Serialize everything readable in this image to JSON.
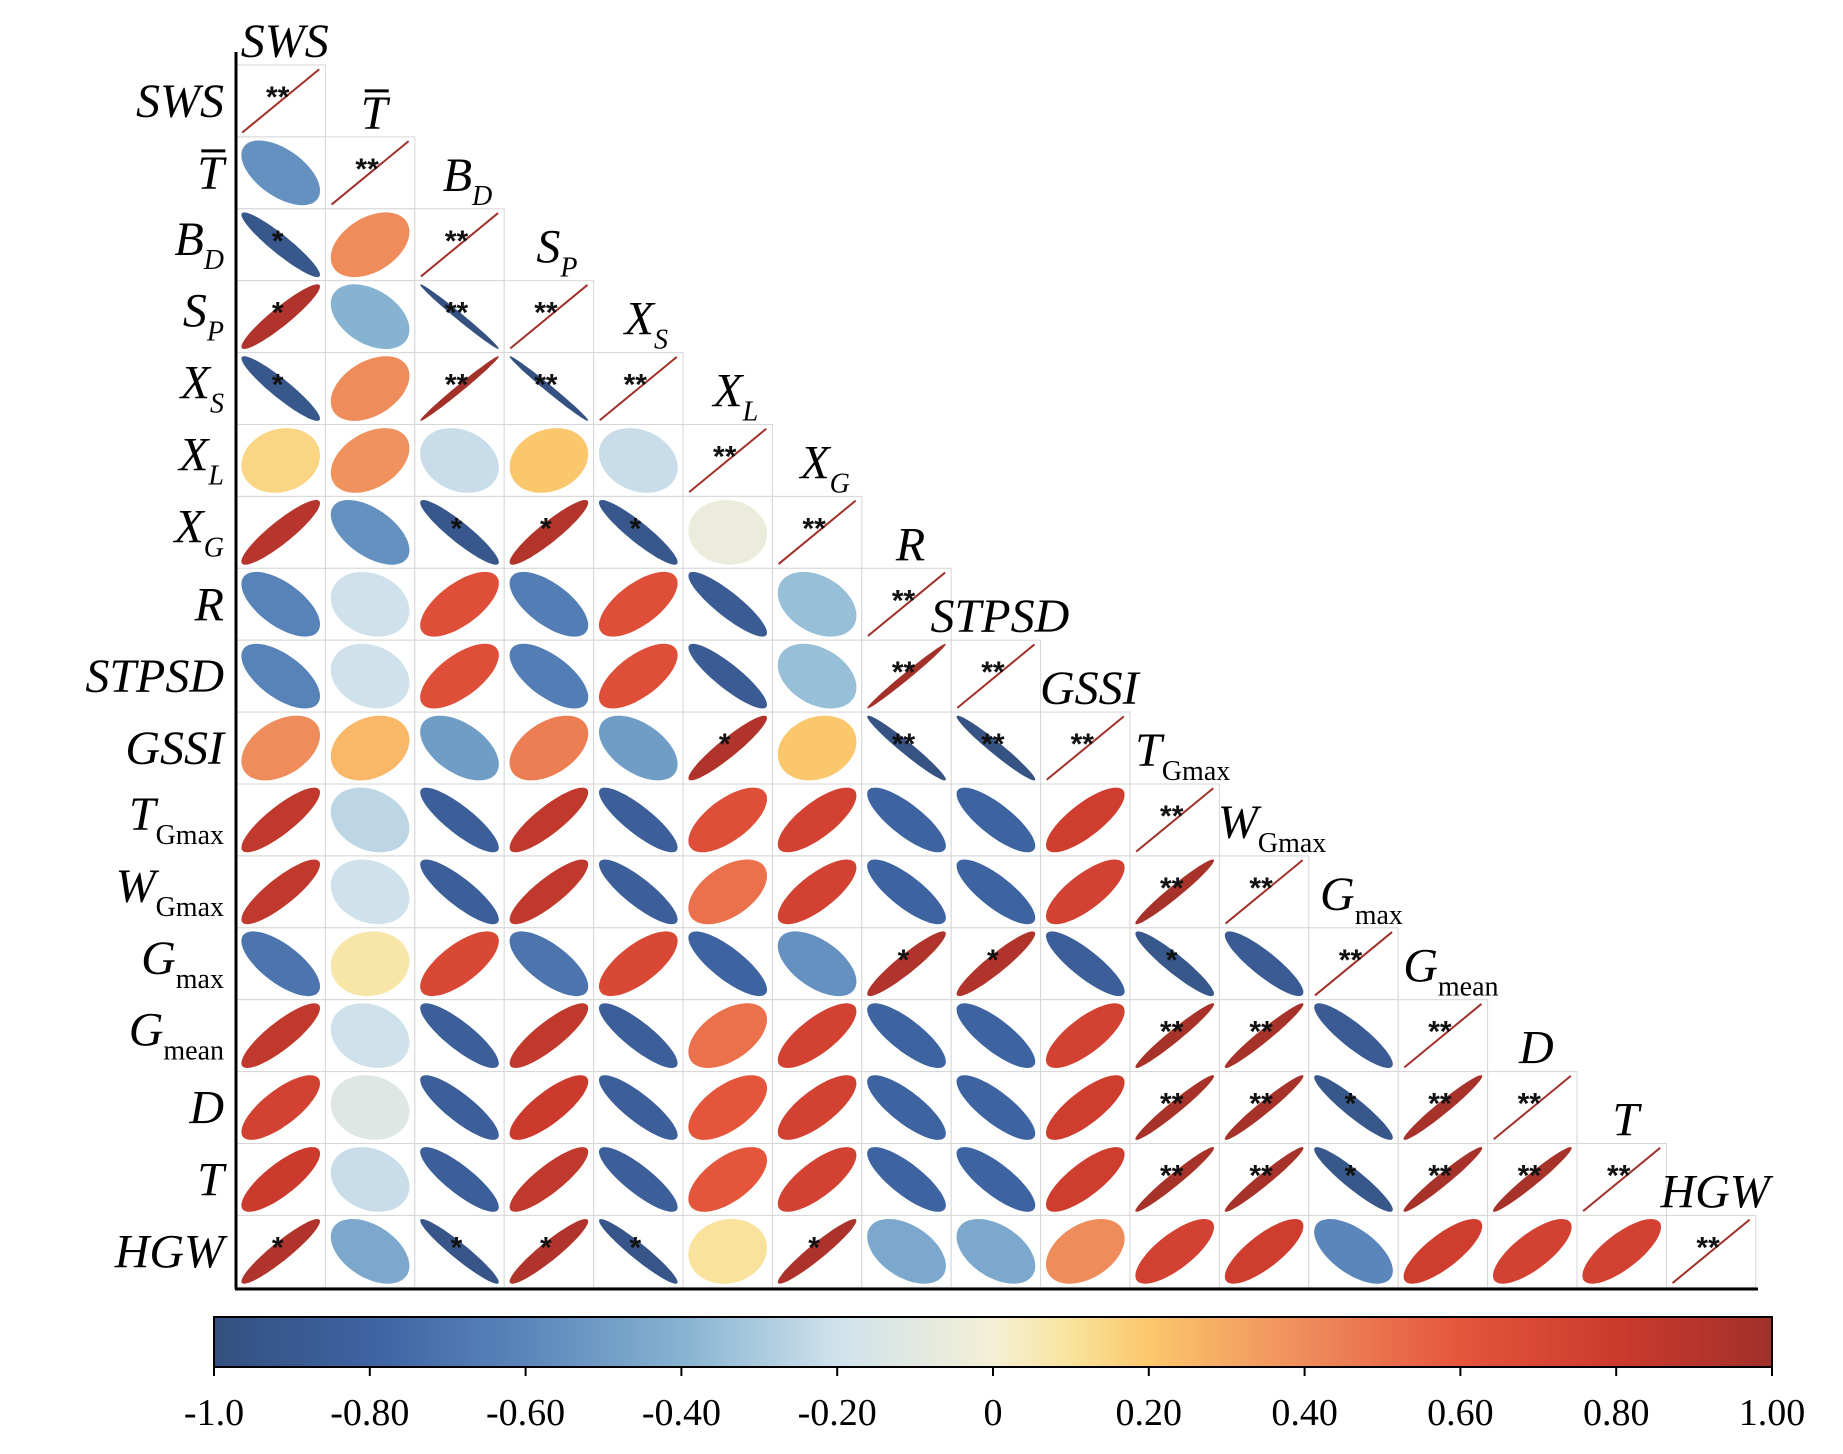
{
  "chart_data": {
    "type": "heatmap",
    "subtype": "correlation-ellipse-lower-triangle",
    "variables": [
      {
        "main": "SWS",
        "sub": "",
        "overline": false
      },
      {
        "main": "T",
        "sub": "",
        "overline": true
      },
      {
        "main": "B",
        "sub": "D",
        "overline": false
      },
      {
        "main": "S",
        "sub": "P",
        "overline": false
      },
      {
        "main": "X",
        "sub": "S",
        "overline": false
      },
      {
        "main": "X",
        "sub": "L",
        "overline": false
      },
      {
        "main": "X",
        "sub": "G",
        "overline": false
      },
      {
        "main": "R",
        "sub": "",
        "overline": false
      },
      {
        "main": "STPSD",
        "sub": "",
        "overline": false
      },
      {
        "main": "GSSI",
        "sub": "",
        "overline": false
      },
      {
        "main": "T",
        "sub": "Gmax",
        "overline": false
      },
      {
        "main": "W",
        "sub": "Gmax",
        "overline": false
      },
      {
        "main": "G",
        "sub": "max",
        "overline": false
      },
      {
        "main": "G",
        "sub": "mean",
        "overline": false
      },
      {
        "main": "D",
        "sub": "",
        "overline": false
      },
      {
        "main": "T",
        "sub": "",
        "overline": false
      },
      {
        "main": "HGW",
        "sub": "",
        "overline": false
      }
    ],
    "correlations": [
      [
        1
      ],
      [
        -0.55,
        1
      ],
      [
        -0.93,
        0.4,
        1
      ],
      [
        0.93,
        -0.4,
        -0.99,
        1
      ],
      [
        -0.93,
        0.4,
        0.99,
        -0.99,
        1
      ],
      [
        0.15,
        0.38,
        -0.22,
        0.2,
        -0.22,
        1
      ],
      [
        0.9,
        -0.55,
        -0.92,
        0.92,
        -0.92,
        -0.05,
        1
      ],
      [
        -0.62,
        -0.2,
        0.65,
        -0.65,
        0.65,
        -0.88,
        -0.35,
        1
      ],
      [
        -0.62,
        -0.2,
        0.65,
        -0.65,
        0.65,
        -0.88,
        -0.35,
        0.99,
        1
      ],
      [
        0.4,
        0.25,
        -0.5,
        0.45,
        -0.5,
        0.93,
        0.2,
        -0.97,
        -0.97,
        1
      ],
      [
        0.85,
        -0.25,
        -0.85,
        0.85,
        -0.85,
        0.65,
        0.75,
        -0.8,
        -0.8,
        0.78,
        1
      ],
      [
        0.85,
        -0.2,
        -0.85,
        0.85,
        -0.85,
        0.5,
        0.75,
        -0.8,
        -0.8,
        0.75,
        0.97,
        1
      ],
      [
        -0.7,
        0.08,
        0.7,
        -0.7,
        0.7,
        -0.8,
        -0.55,
        0.93,
        0.93,
        -0.85,
        -0.93,
        -0.88,
        1
      ],
      [
        0.85,
        -0.2,
        -0.85,
        0.85,
        -0.85,
        0.5,
        0.75,
        -0.8,
        -0.8,
        0.75,
        0.97,
        0.97,
        -0.88,
        1
      ],
      [
        0.75,
        -0.12,
        -0.85,
        0.8,
        -0.85,
        0.6,
        0.75,
        -0.8,
        -0.8,
        0.78,
        0.97,
        0.97,
        -0.93,
        0.97,
        1
      ],
      [
        0.8,
        -0.22,
        -0.85,
        0.85,
        -0.85,
        0.6,
        0.75,
        -0.8,
        -0.8,
        0.78,
        0.97,
        0.97,
        -0.93,
        0.97,
        0.97,
        1
      ],
      [
        0.93,
        -0.45,
        -0.95,
        0.93,
        -0.95,
        0.1,
        0.95,
        -0.45,
        -0.45,
        0.4,
        0.75,
        0.78,
        -0.6,
        0.78,
        0.75,
        0.75,
        1
      ]
    ],
    "significance": [
      [
        "**"
      ],
      [
        "",
        "**"
      ],
      [
        "*",
        "",
        "**"
      ],
      [
        "*",
        "",
        "**",
        "**"
      ],
      [
        "*",
        "",
        "**",
        "**",
        "**"
      ],
      [
        "",
        "",
        "",
        "",
        "",
        "**"
      ],
      [
        "",
        "",
        "*",
        "*",
        "*",
        "",
        "**"
      ],
      [
        "",
        "",
        "",
        "",
        "",
        "",
        "",
        "**"
      ],
      [
        "",
        "",
        "",
        "",
        "",
        "",
        "",
        "**",
        "**"
      ],
      [
        "",
        "",
        "",
        "",
        "",
        "*",
        "",
        "**",
        "**",
        "**"
      ],
      [
        "",
        "",
        "",
        "",
        "",
        "",
        "",
        "",
        "",
        "",
        "**"
      ],
      [
        "",
        "",
        "",
        "",
        "",
        "",
        "",
        "",
        "",
        "",
        "**",
        "**"
      ],
      [
        "",
        "",
        "",
        "",
        "",
        "",
        "",
        "*",
        "*",
        "",
        "*",
        "",
        "**"
      ],
      [
        "",
        "",
        "",
        "",
        "",
        "",
        "",
        "",
        "",
        "",
        "**",
        "**",
        "",
        "**"
      ],
      [
        "",
        "",
        "",
        "",
        "",
        "",
        "",
        "",
        "",
        "",
        "**",
        "**",
        "*",
        "**",
        "**"
      ],
      [
        "",
        "",
        "",
        "",
        "",
        "",
        "",
        "",
        "",
        "",
        "**",
        "**",
        "*",
        "**",
        "**",
        "**"
      ],
      [
        "*",
        "",
        "*",
        "*",
        "*",
        "",
        "*",
        "",
        "",
        "",
        "",
        "",
        "",
        "",
        "",
        "",
        "**"
      ]
    ],
    "colorbar": {
      "range": [
        -1,
        1
      ],
      "tick_values": [
        -1,
        -0.8,
        -0.6,
        -0.4,
        -0.2,
        0,
        0.2,
        0.4,
        0.6,
        0.8,
        1
      ],
      "tick_labels": [
        "-1.0",
        "-0.80",
        "-0.60",
        "-0.40",
        "-0.20",
        "0",
        "0.20",
        "0.40",
        "0.60",
        "0.80",
        "1.00"
      ],
      "orientation": "horizontal",
      "placement": "bottom"
    },
    "colors": [
      {
        "v": -1.0,
        "c": "#34507f"
      },
      {
        "v": -0.8,
        "c": "#3e63a1"
      },
      {
        "v": -0.6,
        "c": "#5a86bb"
      },
      {
        "v": -0.4,
        "c": "#86b3d1"
      },
      {
        "v": -0.2,
        "c": "#cfe2ec"
      },
      {
        "v": 0.0,
        "c": "#f4efd6"
      },
      {
        "v": 0.1,
        "c": "#f9e39c"
      },
      {
        "v": 0.2,
        "c": "#fbc76c"
      },
      {
        "v": 0.4,
        "c": "#ef8c5c"
      },
      {
        "v": 0.6,
        "c": "#e5553c"
      },
      {
        "v": 0.8,
        "c": "#cc3a2d"
      },
      {
        "v": 1.0,
        "c": "#a1302a"
      }
    ],
    "grid": true
  }
}
